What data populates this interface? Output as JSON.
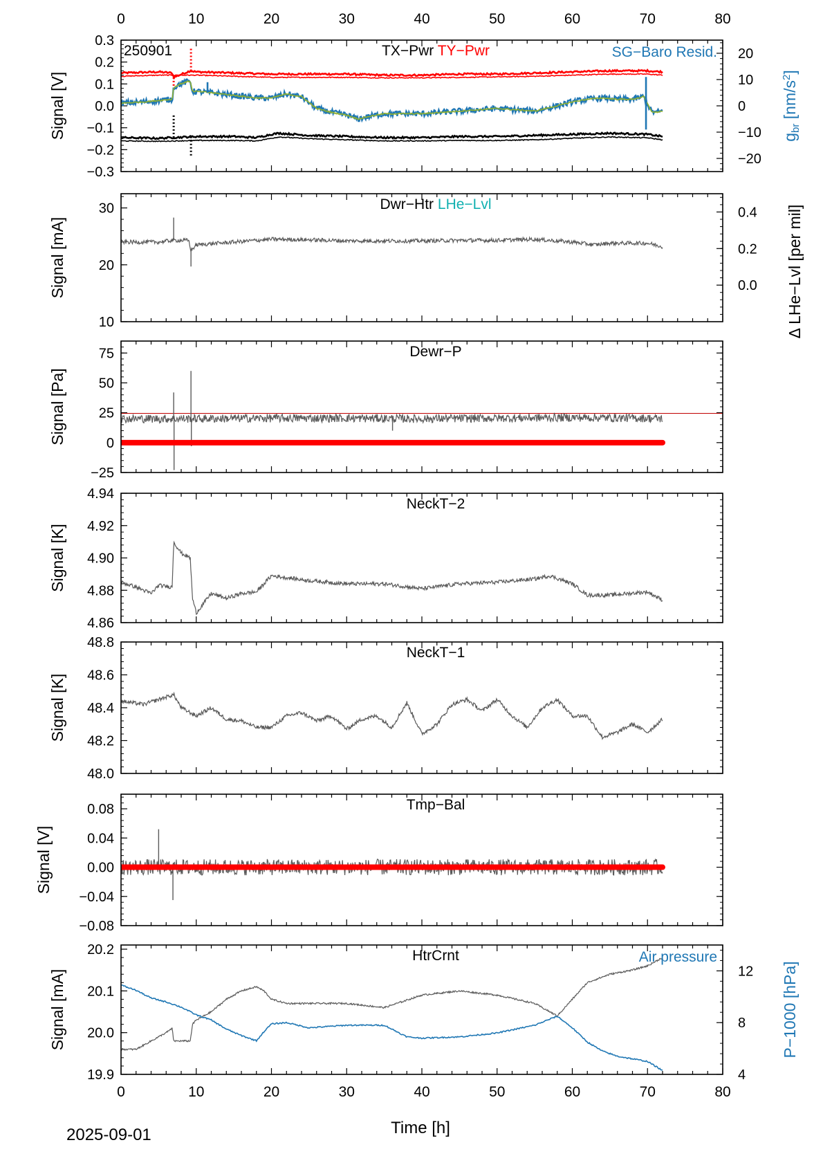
{
  "footer_date": "2025-09-01",
  "xlabel": "Time [h]",
  "xlim": [
    0,
    80
  ],
  "xticks": [
    0,
    10,
    20,
    30,
    40,
    50,
    60,
    70,
    80
  ],
  "colors": {
    "black": "#000000",
    "red": "#ff0000",
    "gray": "#5a5a5a",
    "blue": "#1f77b4",
    "green": "#8fb030",
    "cyan": "#10b0b0",
    "darkred": "#c00000"
  },
  "chart_data": [
    {
      "type": "line",
      "id": "p1",
      "corner_label": "250901",
      "titles": [
        {
          "text": "TX−Pwr",
          "color": "black"
        },
        {
          "text": "TY−Pwr",
          "color": "red"
        }
      ],
      "right_title": {
        "text": "SG−Baro Resid.",
        "color": "blue"
      },
      "ylabel": "Signal [V]",
      "ylim": [
        -0.3,
        0.3
      ],
      "yticks": [
        "−0.3",
        "−0.2",
        "−0.1",
        "0.0",
        "0.1",
        "0.2",
        "0.3"
      ],
      "yticks_values": [
        -0.3,
        -0.2,
        -0.1,
        0.0,
        0.1,
        0.2,
        0.3
      ],
      "y2label": "g_br [nm/s^2]",
      "y2lim": [
        -25,
        25
      ],
      "y2ticks": [
        "−20",
        "−10",
        "0",
        "10",
        "20"
      ],
      "y2ticks_values": [
        -20,
        -10,
        0,
        10,
        20
      ],
      "series": [
        {
          "color": "red",
          "kind": "dots",
          "x": [
            0,
            5,
            6.8,
            7,
            9.2,
            10,
            15,
            20,
            25,
            30,
            35,
            40,
            45,
            50,
            55,
            60,
            65,
            70,
            72
          ],
          "y": [
            0.15,
            0.155,
            0.15,
            0.13,
            0.16,
            0.155,
            0.15,
            0.145,
            0.145,
            0.145,
            0.14,
            0.14,
            0.145,
            0.145,
            0.15,
            0.155,
            0.16,
            0.16,
            0.155
          ],
          "spikes": [
            {
              "x": 9.3,
              "y": 0.27
            },
            {
              "x": 7.0,
              "y": 0.09
            }
          ]
        },
        {
          "color": "red",
          "kind": "line",
          "x": [
            0,
            5,
            10,
            15,
            20,
            25,
            30,
            35,
            40,
            45,
            50,
            55,
            60,
            65,
            70,
            72
          ],
          "y": [
            0.135,
            0.14,
            0.14,
            0.135,
            0.13,
            0.13,
            0.13,
            0.128,
            0.128,
            0.13,
            0.132,
            0.135,
            0.14,
            0.145,
            0.145,
            0.14
          ]
        },
        {
          "color": "black",
          "kind": "dots",
          "x": [
            0,
            5,
            10,
            15,
            18,
            20,
            21,
            25,
            30,
            35,
            40,
            45,
            50,
            55,
            60,
            65,
            70,
            72
          ],
          "y": [
            -0.145,
            -0.148,
            -0.14,
            -0.14,
            -0.145,
            -0.13,
            -0.125,
            -0.135,
            -0.14,
            -0.145,
            -0.145,
            -0.14,
            -0.14,
            -0.135,
            -0.13,
            -0.125,
            -0.13,
            -0.14
          ],
          "spikes": [
            {
              "x": 7.0,
              "y": -0.04
            },
            {
              "x": 9.3,
              "y": -0.235
            }
          ]
        },
        {
          "color": "black",
          "kind": "line",
          "x": [
            0,
            5,
            10,
            15,
            18,
            20,
            21,
            25,
            30,
            35,
            40,
            45,
            50,
            55,
            60,
            65,
            70,
            72
          ],
          "y": [
            -0.16,
            -0.162,
            -0.158,
            -0.158,
            -0.16,
            -0.148,
            -0.142,
            -0.15,
            -0.155,
            -0.16,
            -0.16,
            -0.158,
            -0.158,
            -0.155,
            -0.148,
            -0.142,
            -0.146,
            -0.155
          ]
        },
        {
          "color": "blue",
          "kind": "y2line",
          "x": [
            0,
            3,
            6.8,
            7,
            8,
            9.2,
            9.5,
            10,
            12,
            15,
            18,
            20,
            22,
            24,
            26,
            28,
            30,
            31.5,
            33,
            35,
            40,
            45,
            50,
            55,
            58,
            60,
            62,
            64,
            66,
            68,
            69.5,
            70.5,
            71,
            72
          ],
          "y": [
            1,
            1.5,
            2.5,
            7,
            8.5,
            9.5,
            5.5,
            5.5,
            5,
            4,
            3,
            3,
            4.5,
            3.5,
            -1,
            -2.5,
            -3.5,
            -5,
            -4,
            -3,
            -3,
            -2,
            -1,
            -2,
            0,
            1.5,
            2.5,
            3,
            2.5,
            2.5,
            3.5,
            -2,
            -2.5,
            -2
          ]
        },
        {
          "color": "green",
          "kind": "y2line",
          "x": [
            0,
            3,
            6.8,
            7,
            8,
            9.2,
            9.5,
            10,
            12,
            15,
            18,
            20,
            22,
            24,
            26,
            28,
            30,
            31.5,
            33,
            35,
            40,
            45,
            50,
            55,
            58,
            60,
            62,
            64,
            66,
            68,
            69.5,
            70.5,
            71,
            72
          ],
          "y": [
            1,
            1.5,
            2.5,
            7,
            8.5,
            9.5,
            5.5,
            5.5,
            5,
            4,
            3,
            3,
            4.5,
            3.5,
            -1,
            -2.5,
            -3.5,
            -5,
            -4,
            -3,
            -3,
            -2,
            -1,
            -2,
            0,
            1.5,
            2.5,
            3,
            2.5,
            2.5,
            3.5,
            -2,
            -2.5,
            -2
          ]
        }
      ],
      "annotations": [
        {
          "x": 69.8,
          "y2_from": -9,
          "y2_to": 11,
          "color": "blue"
        },
        {
          "x": 11.5,
          "y2_from": 5,
          "y2_to": 9,
          "color": "blue"
        }
      ]
    },
    {
      "type": "line",
      "id": "p2",
      "titles": [
        {
          "text": "Dwr−Htr",
          "color": "black"
        },
        {
          "text": "LHe−Lvl",
          "color": "cyan"
        }
      ],
      "ylabel": "Signal [mA]",
      "ylim": [
        10,
        32.5
      ],
      "yticks": [
        "10",
        "20",
        "30"
      ],
      "yticks_values": [
        10,
        20,
        30
      ],
      "y2label": "Δ LHe−Lvl [per mil]",
      "y2lim": [
        -0.2,
        0.5
      ],
      "y2ticks": [
        "0.0",
        "0.2",
        "0.4"
      ],
      "y2ticks_values": [
        0.0,
        0.2,
        0.4
      ],
      "series": [
        {
          "color": "gray",
          "kind": "noisy",
          "noise": 0.35,
          "x": [
            0,
            5,
            6.8,
            7,
            9,
            9.3,
            10,
            15,
            20,
            25,
            30,
            35,
            40,
            45,
            50,
            55,
            60,
            63,
            65,
            70,
            72
          ],
          "y": [
            24,
            24,
            24.3,
            24.3,
            24.3,
            22.5,
            23.5,
            24,
            24.5,
            24.4,
            24.2,
            24.2,
            24.2,
            24.3,
            24.3,
            24.5,
            24,
            23.5,
            23.8,
            23.8,
            23.2
          ],
          "spikes": [
            {
              "x": 7.0,
              "y": 28.3
            },
            {
              "x": 9.3,
              "y": 19.7
            }
          ]
        }
      ]
    },
    {
      "type": "line",
      "id": "p3",
      "titles": [
        {
          "text": "Dewr−P",
          "color": "black"
        }
      ],
      "ylabel": "Signal [Pa]",
      "ylim": [
        -25,
        85
      ],
      "yticks": [
        "−25",
        "0",
        "25",
        "50",
        "75"
      ],
      "yticks_values": [
        -25,
        0,
        25,
        50,
        75
      ],
      "hline": {
        "y": 24.5,
        "color": "darkred"
      },
      "series": [
        {
          "color": "gray",
          "kind": "noisy",
          "noise": 3.5,
          "x": [
            0,
            10,
            20,
            30,
            40,
            50,
            60,
            70,
            72
          ],
          "y": [
            20,
            20,
            20.5,
            20.5,
            20,
            20.5,
            21,
            20.5,
            20
          ],
          "spikes": [
            {
              "x": 7.0,
              "y": 42
            },
            {
              "x": 7.05,
              "y": -23
            },
            {
              "x": 9.3,
              "y": 60
            },
            {
              "x": 9.35,
              "y": -3
            },
            {
              "x": 36.1,
              "y": 10
            }
          ]
        },
        {
          "color": "red",
          "kind": "thick",
          "x": [
            0,
            72
          ],
          "y": [
            0,
            0
          ]
        }
      ]
    },
    {
      "type": "line",
      "id": "p4",
      "titles": [
        {
          "text": "NeckT−2",
          "color": "black"
        }
      ],
      "ylabel": "Signal [K]",
      "ylim": [
        4.86,
        4.94
      ],
      "yticks": [
        "4.86",
        "4.88",
        "4.90",
        "4.92",
        "4.94"
      ],
      "yticks_values": [
        4.86,
        4.88,
        4.9,
        4.92,
        4.94
      ],
      "series": [
        {
          "color": "gray",
          "kind": "noisy",
          "noise": 0.0012,
          "x": [
            0,
            2,
            4,
            5,
            6.8,
            7,
            8,
            9.2,
            9.5,
            10,
            12,
            14,
            16,
            18,
            20,
            25,
            30,
            35,
            40,
            45,
            50,
            55,
            57,
            60,
            62,
            65,
            70,
            72
          ],
          "y": [
            4.885,
            4.882,
            4.878,
            4.883,
            4.882,
            4.91,
            4.903,
            4.9,
            4.875,
            4.866,
            4.878,
            4.875,
            4.878,
            4.879,
            4.889,
            4.886,
            4.884,
            4.884,
            4.881,
            4.884,
            4.885,
            4.887,
            4.889,
            4.884,
            4.877,
            4.877,
            4.879,
            4.874
          ]
        }
      ]
    },
    {
      "type": "line",
      "id": "p5",
      "titles": [
        {
          "text": "NeckT−1",
          "color": "black"
        }
      ],
      "ylabel": "Signal [K]",
      "ylim": [
        48.0,
        48.8
      ],
      "yticks": [
        "48.0",
        "48.2",
        "48.4",
        "48.6",
        "48.8"
      ],
      "yticks_values": [
        48.0,
        48.2,
        48.4,
        48.6,
        48.8
      ],
      "series": [
        {
          "color": "gray",
          "kind": "noisy",
          "noise": 0.012,
          "x": [
            0,
            3,
            5,
            7,
            8,
            10,
            12,
            14,
            16,
            18,
            20,
            22,
            24,
            26,
            28,
            30,
            32,
            34,
            36,
            38,
            40,
            42,
            44,
            46,
            48,
            50,
            52,
            54,
            56,
            58,
            60,
            62,
            64,
            66,
            68,
            70,
            72
          ],
          "y": [
            48.44,
            48.42,
            48.45,
            48.48,
            48.4,
            48.35,
            48.4,
            48.33,
            48.32,
            48.28,
            48.28,
            48.35,
            48.37,
            48.32,
            48.35,
            48.27,
            48.33,
            48.35,
            48.28,
            48.43,
            48.24,
            48.3,
            48.42,
            48.45,
            48.38,
            48.45,
            48.35,
            48.28,
            48.4,
            48.45,
            48.35,
            48.35,
            48.22,
            48.25,
            48.3,
            48.25,
            48.33
          ]
        }
      ]
    },
    {
      "type": "line",
      "id": "p6",
      "titles": [
        {
          "text": "Tmp−Bal",
          "color": "black"
        }
      ],
      "ylabel": "Signal [V]",
      "ylim": [
        -0.08,
        0.1
      ],
      "yticks": [
        "−0.08",
        "−0.04",
        "0.00",
        "0.04",
        "0.08"
      ],
      "yticks_values": [
        -0.08,
        -0.04,
        0.0,
        0.04,
        0.08
      ],
      "series": [
        {
          "color": "gray",
          "kind": "noisy",
          "noise": 0.011,
          "x": [
            0,
            72
          ],
          "y": [
            0.0,
            0.0
          ],
          "spikes": [
            {
              "x": 5.0,
              "y": 0.052
            },
            {
              "x": 6.9,
              "y": -0.045
            }
          ]
        },
        {
          "color": "red",
          "kind": "thick",
          "x": [
            0,
            72
          ],
          "y": [
            0,
            0
          ]
        }
      ]
    },
    {
      "type": "line",
      "id": "p7",
      "titles": [
        {
          "text": "HtrCrnt",
          "color": "black"
        }
      ],
      "right_title": {
        "text": "Air pressure",
        "color": "blue"
      },
      "ylabel": "Signal [mA]",
      "ylim": [
        19.9,
        20.21
      ],
      "yticks": [
        "19.9",
        "20.0",
        "20.1",
        "20.2"
      ],
      "yticks_values": [
        19.9,
        20.0,
        20.1,
        20.2
      ],
      "y2label": "P−1000 [hPa]",
      "y2lim": [
        4,
        14
      ],
      "y2ticks": [
        "4",
        "8",
        "12"
      ],
      "y2ticks_values": [
        4,
        8,
        12
      ],
      "series": [
        {
          "color": "gray",
          "kind": "noisy",
          "noise": 0.002,
          "x": [
            0,
            2,
            4,
            6,
            6.8,
            7,
            9.2,
            9.5,
            10,
            12,
            14,
            16,
            18,
            19,
            20,
            22,
            25,
            30,
            35,
            40,
            45,
            50,
            55,
            58,
            60,
            62,
            65,
            68,
            70,
            72
          ],
          "y": [
            19.96,
            19.96,
            19.98,
            20.0,
            20.01,
            19.98,
            19.98,
            20.02,
            20.03,
            20.05,
            20.08,
            20.1,
            20.11,
            20.1,
            20.08,
            20.07,
            20.07,
            20.07,
            20.06,
            20.09,
            20.1,
            20.09,
            20.07,
            20.04,
            20.08,
            20.12,
            20.14,
            20.15,
            20.16,
            20.18
          ]
        },
        {
          "color": "blue",
          "kind": "y2line",
          "x": [
            0,
            2,
            4,
            6,
            8,
            10,
            12,
            14,
            16,
            18,
            19,
            20,
            22,
            25,
            30,
            35,
            38,
            40,
            45,
            50,
            55,
            58,
            60,
            62,
            64,
            66,
            68,
            70,
            72
          ],
          "y": [
            10.9,
            10.5,
            9.9,
            9.6,
            9.2,
            8.6,
            8.2,
            7.5,
            7.0,
            6.6,
            7.3,
            7.9,
            8.0,
            7.6,
            7.8,
            7.8,
            6.9,
            6.8,
            6.9,
            7.2,
            7.8,
            8.5,
            7.6,
            6.5,
            5.8,
            5.4,
            5.2,
            5.0,
            4.3
          ]
        }
      ]
    }
  ]
}
